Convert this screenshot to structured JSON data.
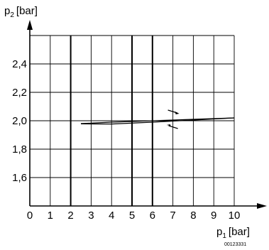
{
  "chart_data": {
    "type": "line",
    "x_label_main": "p",
    "x_label_sub": "1",
    "x_label_unit": "[bar]",
    "y_label_main": "p",
    "y_label_sub": "2",
    "y_label_unit": "[bar]",
    "x_ticks": [
      "0",
      "1",
      "2",
      "3",
      "4",
      "5",
      "6",
      "7",
      "8",
      "9",
      "10"
    ],
    "y_ticks": [
      "1,6",
      "1,8",
      "2,0",
      "2,2",
      "2,4"
    ],
    "xlim": [
      0,
      10
    ],
    "ylim": [
      1.4,
      2.6
    ],
    "major_x_gridlines": [
      2,
      5,
      6
    ],
    "grid": true,
    "series": [
      {
        "direction": "increasing",
        "x": [
          2.5,
          4,
          6,
          8,
          10
        ],
        "y": [
          1.98,
          1.99,
          2.0,
          2.01,
          2.02
        ]
      },
      {
        "direction": "decreasing",
        "x": [
          10,
          8,
          6,
          4,
          2.5
        ],
        "y": [
          2.02,
          2.005,
          1.99,
          1.977,
          1.978
        ]
      }
    ],
    "annotations": [
      {
        "type": "arrow",
        "direction": "right",
        "x": 7.0,
        "y": 2.065
      },
      {
        "type": "arrow",
        "direction": "left",
        "x": 7.0,
        "y": 1.955
      }
    ],
    "reference_code": "00123331"
  }
}
